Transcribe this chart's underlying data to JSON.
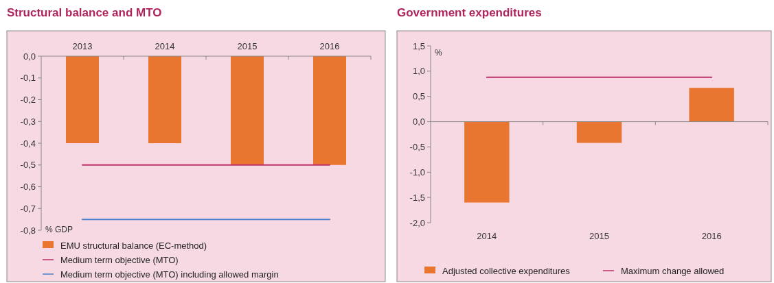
{
  "chart_data": [
    {
      "type": "bar",
      "title": "Structural balance and MTO",
      "ylabel": "% GDP",
      "categories": [
        "2013",
        "2014",
        "2015",
        "2016"
      ],
      "series": [
        {
          "name": "EMU structural balance (EC-method)",
          "color": "#e87530",
          "values": [
            -0.4,
            -0.4,
            -0.5,
            -0.5
          ]
        },
        {
          "name": "Medium term objective (MTO)",
          "type": "line",
          "color": "#c0306a",
          "values": [
            -0.5,
            -0.5,
            -0.5,
            -0.5
          ]
        },
        {
          "name": "Medium term objective (MTO) including allowed margin",
          "type": "line",
          "color": "#4a7cc8",
          "values": [
            -0.75,
            -0.75,
            -0.75,
            -0.75
          ]
        }
      ],
      "ylim": [
        -0.8,
        0
      ],
      "yticks": [
        {
          "value": 0,
          "label": "0,0"
        },
        {
          "value": -0.1,
          "label": "-0,1"
        },
        {
          "value": -0.2,
          "label": "-0,2"
        },
        {
          "value": -0.3,
          "label": "-0,3"
        },
        {
          "value": -0.4,
          "label": "-0,4"
        },
        {
          "value": -0.5,
          "label": "-0,5"
        },
        {
          "value": -0.6,
          "label": "-0,6"
        },
        {
          "value": -0.7,
          "label": "-0,7"
        },
        {
          "value": -0.8,
          "label": "-0,8"
        }
      ],
      "legend": "bottom"
    },
    {
      "type": "bar",
      "title": "Government expenditures",
      "ylabel": "%",
      "categories": [
        "2014",
        "2015",
        "2016"
      ],
      "series": [
        {
          "name": "Adjusted collective expenditures",
          "color": "#e87530",
          "values": [
            -1.6,
            -0.42,
            0.67
          ]
        },
        {
          "name": "Maximum change allowed",
          "type": "line",
          "color": "#c0306a",
          "values": [
            0.88,
            0.88,
            0.88
          ]
        }
      ],
      "ylim": [
        -2,
        1.5
      ],
      "yticks": [
        {
          "value": 1.5,
          "label": "1,5"
        },
        {
          "value": 1,
          "label": "1,0"
        },
        {
          "value": 0.5,
          "label": "0,5"
        },
        {
          "value": 0,
          "label": "0,0"
        },
        {
          "value": -0.5,
          "label": "-0,5"
        },
        {
          "value": -1,
          "label": "-1,0"
        },
        {
          "value": -1.5,
          "label": "-1,5"
        },
        {
          "value": -2,
          "label": "-2,0"
        }
      ],
      "legend": "bottom"
    }
  ]
}
